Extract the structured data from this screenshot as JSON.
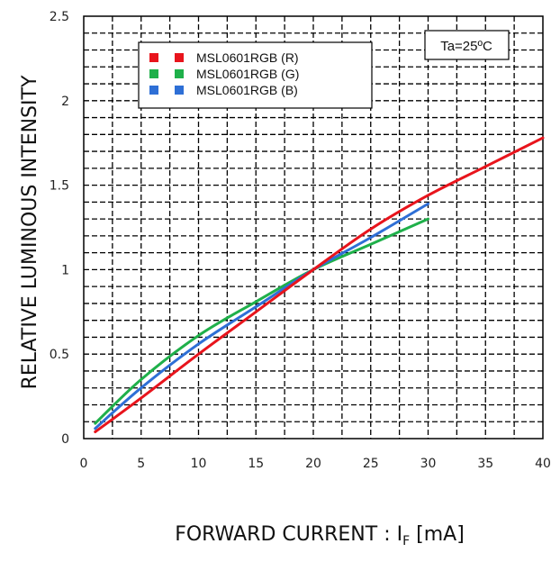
{
  "chart_data": {
    "type": "line",
    "xlabel_main": "FORWARD CURRENT : I",
    "xlabel_sub": "F",
    "xlabel_unit": " [mA]",
    "ylabel": "RELATIVE LUMINOUS INTENSITY",
    "annotation": "Ta=25ºC",
    "xlim": [
      0,
      40
    ],
    "ylim": [
      0,
      2.5
    ],
    "x_ticks": [
      0,
      5,
      10,
      15,
      20,
      25,
      30,
      35,
      40
    ],
    "y_ticks": [
      0,
      0.5,
      1,
      1.5,
      2,
      2.5
    ],
    "y_tick_labels": [
      "0",
      "0.5",
      "1",
      "1.5",
      "2",
      "2.5"
    ],
    "grid": true,
    "legend_position": "top-left",
    "series": [
      {
        "name": "MSL0601RGB (R)",
        "color": "#e8141c",
        "x": [
          1,
          5,
          10,
          15,
          20,
          25,
          30,
          35,
          40
        ],
        "y": [
          0.04,
          0.24,
          0.5,
          0.75,
          1.0,
          1.24,
          1.44,
          1.61,
          1.78
        ]
      },
      {
        "name": "MSL0601RGB (G)",
        "color": "#1fb04a",
        "x": [
          1,
          5,
          10,
          15,
          20,
          25,
          30
        ],
        "y": [
          0.09,
          0.35,
          0.61,
          0.81,
          1.0,
          1.15,
          1.3
        ]
      },
      {
        "name": "MSL0601RGB (B)",
        "color": "#2e6fd6",
        "x": [
          1,
          5,
          10,
          15,
          20,
          25,
          30
        ],
        "y": [
          0.06,
          0.3,
          0.56,
          0.78,
          1.0,
          1.19,
          1.39
        ]
      }
    ]
  }
}
